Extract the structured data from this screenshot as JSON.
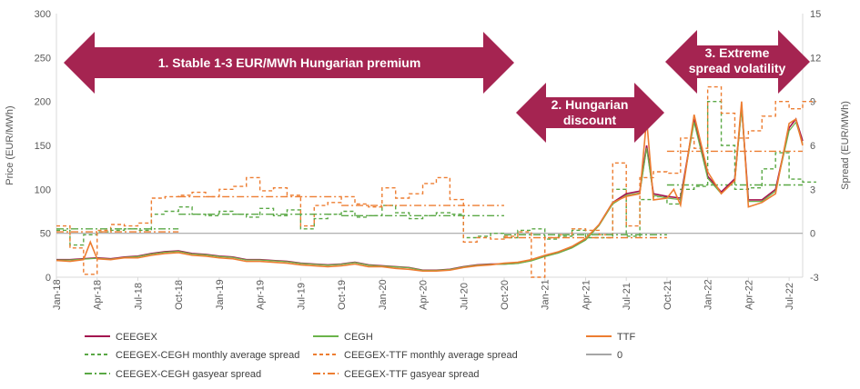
{
  "chart_data": {
    "type": "line",
    "title": "",
    "x_tick_labels": [
      "Jan-18",
      "Apr-18",
      "Jul-18",
      "Oct-18",
      "Jan-19",
      "Apr-19",
      "Jul-19",
      "Oct-19",
      "Jan-20",
      "Apr-20",
      "Jul-20",
      "Oct-20",
      "Jan-21",
      "Apr-21",
      "Jul-21",
      "Oct-21",
      "Jan-22",
      "Apr-22",
      "Jul-22"
    ],
    "left_axis": {
      "label": "Price (EUR/MWh)",
      "ylim": [
        0,
        300
      ],
      "ticks": [
        0,
        50,
        100,
        150,
        200,
        250,
        300
      ]
    },
    "right_axis": {
      "label": "Spread (EUR/MWh)",
      "ylim": [
        -3,
        15
      ],
      "ticks": [
        -3,
        0,
        3,
        6,
        9,
        12,
        15
      ]
    },
    "grid": false,
    "legend_position": "bottom",
    "colors": {
      "ceegex": "#a3124f",
      "cegh": "#6ab34a",
      "ttf": "#ed7d31",
      "cegh_spread": "#5aa845",
      "ttf_spread": "#ed7d31",
      "zero": "#a6a6a6",
      "arrow": "#a52451"
    },
    "annotations": [
      {
        "text_lines": [
          "1. Stable 1-3 EUR/MWh Hungarian premium"
        ]
      },
      {
        "text_lines": [
          "2. Hungarian",
          "discount"
        ]
      },
      {
        "text_lines": [
          "3. Extreme",
          "spread volatility"
        ]
      }
    ],
    "legend": [
      {
        "key": "ceegex",
        "label": "CEEGEX",
        "style": "solid"
      },
      {
        "key": "cegh",
        "label": "CEGH",
        "style": "solid"
      },
      {
        "key": "ttf",
        "label": "TTF",
        "style": "solid"
      },
      {
        "key": "cegh_spread",
        "label": "CEEGEX-CEGH monthly average spread",
        "style": "dash"
      },
      {
        "key": "ttf_spread",
        "label": "CEEGEX-TTF monthly average spread",
        "style": "dash"
      },
      {
        "key": "zero",
        "label": "0",
        "style": "solid"
      },
      {
        "key": "cegh_spread",
        "label": "CEEGEX-CEGH gasyear spread",
        "style": "dashdot"
      },
      {
        "key": "ttf_spread",
        "label": "CEEGEX-TTF gasyear spread",
        "style": "dashdot"
      }
    ],
    "series": {
      "ttf_price": {
        "name": "TTF",
        "x_month": [
          0,
          1,
          2,
          2.5,
          3,
          4,
          5,
          6,
          7,
          8,
          9,
          10,
          11,
          12,
          13,
          14,
          15,
          16,
          17,
          18,
          19,
          20,
          21,
          22,
          23,
          24,
          25,
          26,
          27,
          28,
          29,
          30,
          31,
          32,
          33,
          34,
          35,
          36,
          37,
          38,
          39,
          40,
          41,
          42,
          43,
          43.5,
          44,
          45,
          45.5,
          46,
          47,
          48,
          49,
          50,
          50.5,
          51,
          52,
          53,
          54,
          54.5,
          55
        ],
        "y": [
          19,
          18,
          20,
          40,
          21,
          20,
          22,
          22,
          25,
          27,
          28,
          25,
          24,
          22,
          21,
          18,
          18,
          17,
          16,
          14,
          13,
          12,
          13,
          15,
          12,
          12,
          10,
          9,
          7,
          7,
          8,
          11,
          13,
          14,
          16,
          17,
          20,
          25,
          29,
          35,
          44,
          60,
          85,
          92,
          95,
          180,
          88,
          90,
          100,
          82,
          185,
          120,
          95,
          110,
          200,
          80,
          85,
          95,
          175,
          180,
          150
        ]
      },
      "ceegex_price": {
        "name": "CEEGEX",
        "x_month": [
          0,
          1,
          2,
          3,
          4,
          5,
          6,
          7,
          8,
          9,
          10,
          11,
          12,
          13,
          14,
          15,
          16,
          17,
          18,
          19,
          20,
          21,
          22,
          23,
          24,
          25,
          26,
          27,
          28,
          29,
          30,
          31,
          32,
          33,
          34,
          35,
          36,
          37,
          38,
          39,
          40,
          41,
          42,
          43,
          43.5,
          44,
          45,
          46,
          47,
          48,
          49,
          50,
          50.5,
          51,
          52,
          53,
          54,
          54.5,
          55
        ],
        "y": [
          20,
          20,
          21,
          22,
          21,
          23,
          24,
          27,
          29,
          30,
          27,
          26,
          24,
          23,
          20,
          20,
          19,
          18,
          16,
          15,
          14,
          15,
          17,
          14,
          13,
          12,
          11,
          8,
          8,
          9,
          12,
          14,
          15,
          15,
          16,
          19,
          24,
          28,
          34,
          43,
          60,
          85,
          95,
          98,
          150,
          95,
          92,
          90,
          180,
          115,
          97,
          112,
          195,
          88,
          88,
          100,
          170,
          180,
          155
        ]
      },
      "ceegex_cegh_monthly_spread": {
        "name": "CEEGEX-CEGH monthly average spread",
        "x_month": [
          0,
          1,
          2,
          3,
          4,
          5,
          6,
          7,
          8,
          9,
          10,
          11,
          12,
          13,
          14,
          15,
          16,
          17,
          18,
          19,
          20,
          21,
          22,
          23,
          24,
          25,
          26,
          27,
          28,
          29,
          30,
          31,
          32,
          33,
          34,
          35,
          36,
          37,
          38,
          39,
          40,
          41,
          42,
          43,
          44,
          45,
          46,
          47,
          48,
          49,
          50,
          51,
          52,
          53,
          54,
          55
        ],
        "y": [
          0.2,
          -0.8,
          -0.1,
          0.1,
          0.2,
          0.3,
          0.2,
          1.3,
          1.5,
          1.8,
          1.3,
          1.2,
          1.5,
          1.3,
          1.1,
          1.7,
          1.2,
          1.6,
          0.3,
          1.0,
          1.3,
          1.5,
          1.1,
          1.2,
          1.9,
          1.4,
          1.0,
          1.2,
          1.4,
          1.3,
          -0.3,
          -0.2,
          0.0,
          -0.3,
          0.2,
          0.3,
          -0.4,
          -0.2,
          0.2,
          -0.3,
          -0.3,
          3.0,
          -0.2,
          2.3,
          2.5,
          2.0,
          3.0,
          3.2,
          9.0,
          6.0,
          3.0,
          3.1,
          4.4,
          5.5,
          3.7,
          3.5
        ]
      },
      "ceegex_ttf_monthly_spread": {
        "name": "CEEGEX-TTF monthly average spread",
        "x_month": [
          0,
          1,
          2,
          3,
          4,
          5,
          6,
          7,
          8,
          9,
          10,
          11,
          12,
          13,
          14,
          15,
          16,
          17,
          18,
          19,
          20,
          21,
          22,
          23,
          24,
          25,
          26,
          27,
          28,
          29,
          30,
          31,
          32,
          33,
          34,
          35,
          36,
          37,
          38,
          39,
          40,
          41,
          42,
          43,
          44,
          45,
          46,
          47,
          48,
          49,
          50,
          51,
          52,
          53,
          54,
          55
        ],
        "y": [
          0.5,
          -1.0,
          -2.8,
          0.2,
          0.6,
          0.5,
          0.7,
          2.4,
          2.5,
          2.6,
          2.8,
          2.5,
          3.0,
          3.2,
          3.8,
          2.9,
          3.1,
          2.6,
          0.5,
          1.9,
          2.1,
          2.5,
          2.0,
          1.8,
          3.1,
          2.4,
          2.7,
          3.4,
          3.8,
          2.3,
          -0.6,
          -0.3,
          -0.4,
          -0.2,
          0.1,
          -3.0,
          -0.3,
          -0.1,
          0.3,
          0.2,
          -0.1,
          4.8,
          0.5,
          3.8,
          4.2,
          4.1,
          6.5,
          5.8,
          10.0,
          8.2,
          6.5,
          7.0,
          8.0,
          9.0,
          8.5,
          9.0
        ]
      },
      "ceegex_cegh_gasyear_spread": {
        "name": "CEEGEX-CEGH gasyear spread",
        "segments": [
          {
            "x": [
              0,
              9
            ],
            "y": 0.3
          },
          {
            "x": [
              9,
              21
            ],
            "y": 1.3
          },
          {
            "x": [
              21,
              33
            ],
            "y": 1.2
          },
          {
            "x": [
              33,
              45
            ],
            "y": -0.1
          },
          {
            "x": [
              45,
              55
            ],
            "y": 3.3
          }
        ]
      },
      "ceegex_ttf_gasyear_spread": {
        "name": "CEEGEX-TTF gasyear spread",
        "segments": [
          {
            "x": [
              0,
              9
            ],
            "y": 0.1
          },
          {
            "x": [
              9,
              21
            ],
            "y": 2.5
          },
          {
            "x": [
              21,
              33
            ],
            "y": 1.9
          },
          {
            "x": [
              33,
              45
            ],
            "y": -0.3
          },
          {
            "x": [
              45,
              55
            ],
            "y": 5.6
          }
        ]
      },
      "zero_line": {
        "name": "0",
        "y": 0
      }
    }
  }
}
